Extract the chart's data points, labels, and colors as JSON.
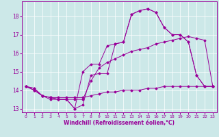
{
  "xlabel": "Windchill (Refroidissement éolien,°C)",
  "background_color": "#cce8e8",
  "line_color": "#990099",
  "ylim": [
    12.8,
    18.8
  ],
  "xlim": [
    -0.5,
    23.5
  ],
  "yticks": [
    13,
    14,
    15,
    16,
    17,
    18
  ],
  "xticks": [
    0,
    1,
    2,
    3,
    4,
    5,
    6,
    7,
    8,
    9,
    10,
    11,
    12,
    13,
    14,
    15,
    16,
    17,
    18,
    19,
    20,
    21,
    22,
    23
  ],
  "series": [
    {
      "x": [
        0,
        1,
        2,
        3,
        4,
        5,
        6,
        7,
        8,
        9,
        10,
        11,
        12,
        13,
        14,
        15,
        16,
        17,
        18,
        19,
        20,
        21,
        22,
        23
      ],
      "y": [
        14.2,
        14.1,
        13.7,
        13.6,
        13.5,
        13.5,
        13.0,
        13.2,
        14.8,
        14.9,
        14.9,
        16.5,
        16.6,
        18.1,
        18.3,
        18.4,
        18.2,
        17.4,
        17.0,
        17.0,
        16.6,
        14.8,
        14.2,
        14.2
      ]
    },
    {
      "x": [
        0,
        1,
        2,
        3,
        4,
        5,
        6,
        7,
        8,
        9,
        10,
        11,
        12,
        13,
        14,
        15,
        16,
        17,
        18,
        19,
        20,
        21,
        22,
        23
      ],
      "y": [
        14.2,
        14.1,
        13.7,
        13.6,
        13.5,
        13.5,
        13.0,
        15.0,
        15.4,
        15.4,
        16.4,
        16.5,
        16.6,
        18.1,
        18.3,
        18.4,
        18.2,
        17.4,
        17.0,
        17.0,
        16.6,
        14.8,
        14.2,
        14.2
      ]
    },
    {
      "x": [
        0,
        1,
        2,
        3,
        4,
        5,
        6,
        7,
        8,
        9,
        10,
        11,
        12,
        13,
        14,
        15,
        16,
        17,
        18,
        19,
        20,
        21,
        22,
        23
      ],
      "y": [
        14.2,
        14.0,
        13.7,
        13.6,
        13.6,
        13.6,
        13.6,
        13.6,
        13.7,
        13.8,
        13.9,
        13.9,
        14.0,
        14.0,
        14.0,
        14.1,
        14.1,
        14.2,
        14.2,
        14.2,
        14.2,
        14.2,
        14.2,
        14.2
      ]
    },
    {
      "x": [
        0,
        1,
        2,
        3,
        4,
        5,
        6,
        7,
        8,
        9,
        10,
        11,
        12,
        13,
        14,
        15,
        16,
        17,
        18,
        19,
        20,
        21,
        22,
        23
      ],
      "y": [
        14.2,
        14.0,
        13.7,
        13.5,
        13.5,
        13.5,
        13.5,
        13.5,
        14.5,
        15.2,
        15.5,
        15.7,
        15.9,
        16.1,
        16.2,
        16.3,
        16.5,
        16.6,
        16.7,
        16.8,
        16.9,
        16.8,
        16.7,
        14.2
      ]
    }
  ]
}
